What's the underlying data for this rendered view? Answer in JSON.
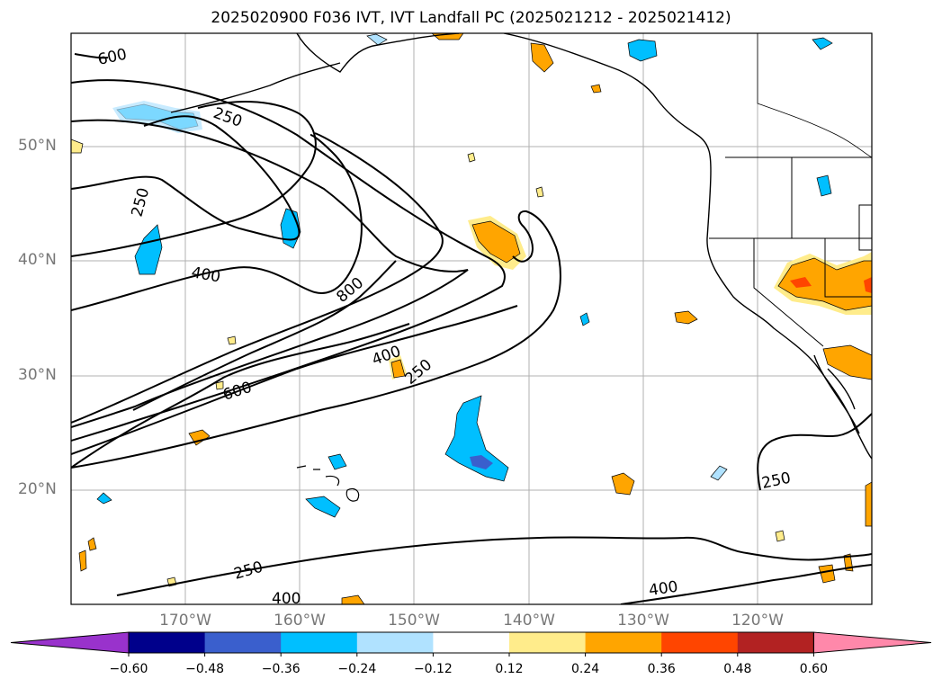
{
  "title": "2025020900 F036 IVT, IVT Landfall PC (2025021212 - 2025021412)",
  "map": {
    "lat_labels": [
      "50°N",
      "40°N",
      "30°N",
      "20°N"
    ],
    "lon_labels": [
      "170°W",
      "160°W",
      "150°W",
      "140°W",
      "130°W",
      "120°W"
    ],
    "contour_labels": [
      "600",
      "250",
      "250",
      "400",
      "800",
      "400",
      "250",
      "600",
      "250",
      "250",
      "400",
      "400"
    ],
    "contour_levels": [
      250,
      400,
      600,
      800
    ],
    "grid": true,
    "extent": {
      "lon_min": -180,
      "lon_max": -110,
      "lat_min": 10,
      "lat_max": 60
    }
  },
  "colorbar": {
    "ticks": [
      "−0.60",
      "−0.48",
      "−0.36",
      "−0.24",
      "−0.12",
      "0.12",
      "0.24",
      "0.36",
      "0.48",
      "0.60"
    ],
    "colors": [
      "#9932cc",
      "#00008b",
      "#3a5fcd",
      "#00bfff",
      "#b0e2ff",
      "#ffffff",
      "#ffec8b",
      "#ffa500",
      "#ff4500",
      "#b22222",
      "#ff88aa"
    ],
    "extend": "both"
  }
}
